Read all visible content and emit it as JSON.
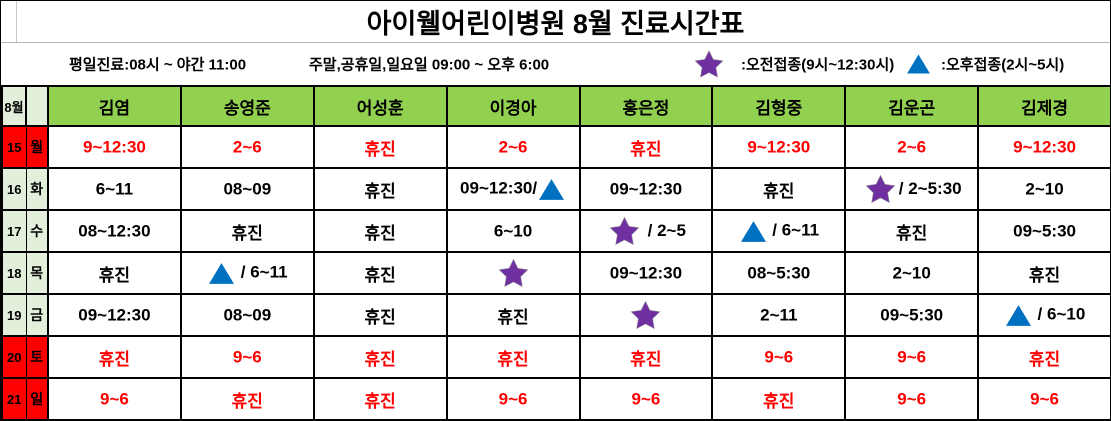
{
  "title": "아이웰어린이병원 8월 진료시간표",
  "info": {
    "weekday_hours": "평일진료:08시 ~ 야간 11:00",
    "weekend_hours": "주말,공휴일,일요일 09:00 ~ 오후 6:00",
    "legend": [
      {
        "icon": "star",
        "label": ":오전접종(9시~12:30시)"
      },
      {
        "icon": "triangle",
        "label": ":오후접종(2시~5시)"
      }
    ]
  },
  "icons": {
    "star": "morning-vaccination-star-icon",
    "triangle": "afternoon-vaccination-triangle-icon"
  },
  "colors": {
    "header_green": "#92D050",
    "pale_green": "#E2EFDA",
    "holiday_red": "#FF0000",
    "closed_text_red": "#FF0000",
    "star_purple": "#7030A0",
    "triangle_blue": "#0070C0"
  },
  "table": {
    "month_label": "8월",
    "doctors": [
      "김염",
      "송영준",
      "어성훈",
      "이경아",
      "홍은정",
      "김형중",
      "김운곤",
      "김제경"
    ],
    "closed_label": "휴진",
    "rows": [
      {
        "date": "15",
        "day": "월",
        "holiday": true,
        "cells": [
          "9~12:30",
          "2~6",
          "휴진",
          "2~6",
          "휴진",
          "9~12:30",
          "2~6",
          "9~12:30"
        ]
      },
      {
        "date": "16",
        "day": "화",
        "holiday": false,
        "cells": [
          "6~11",
          "08~09",
          "휴진",
          "09~12:30/{tri}",
          "09~12:30",
          "휴진",
          "{star}/ 2~5:30",
          "2~10"
        ]
      },
      {
        "date": "17",
        "day": "수",
        "holiday": false,
        "cells": [
          "08~12:30",
          "휴진",
          "휴진",
          "6~10",
          "{star} / 2~5",
          "{tri} / 6~11",
          "휴진",
          "09~5:30"
        ]
      },
      {
        "date": "18",
        "day": "목",
        "holiday": false,
        "cells": [
          "휴진",
          "{tri} / 6~11",
          "휴진",
          "{star}",
          "09~12:30",
          "08~5:30",
          "2~10",
          "휴진"
        ]
      },
      {
        "date": "19",
        "day": "금",
        "holiday": false,
        "cells": [
          "09~12:30",
          "08~09",
          "휴진",
          "휴진",
          "{star}",
          "2~11",
          "09~5:30",
          "{tri} / 6~10"
        ]
      },
      {
        "date": "20",
        "day": "토",
        "holiday": true,
        "cells": [
          "휴진",
          "9~6",
          "휴진",
          "휴진",
          "휴진",
          "9~6",
          "9~6",
          "휴진"
        ]
      },
      {
        "date": "21",
        "day": "일",
        "holiday": true,
        "cells": [
          "9~6",
          "휴진",
          "휴진",
          "9~6",
          "9~6",
          "휴진",
          "9~6",
          "9~6"
        ]
      }
    ]
  }
}
